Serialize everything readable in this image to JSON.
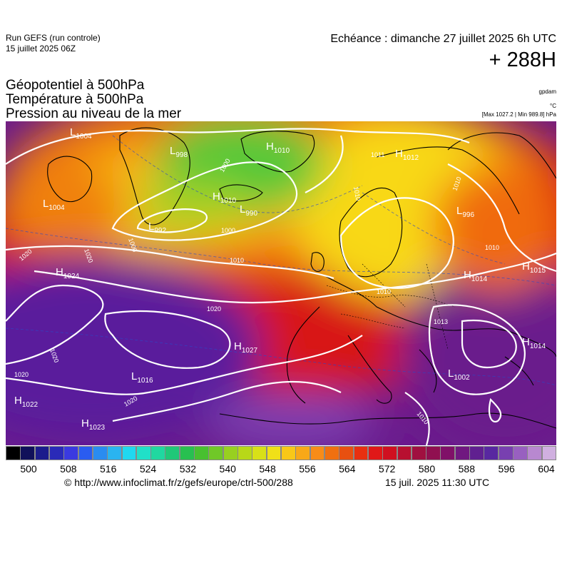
{
  "header": {
    "run_title": "Run GEFS (run controle)",
    "run_date": "15 juillet 2025 06Z",
    "valid_time": "Echéance : dimanche 27 juillet 2025 6h UTC",
    "lead_time": "+ 288H"
  },
  "layers": [
    "Géopotentiel à 500hPa",
    "Température à 500hPa",
    "Pression au niveau de la mer"
  ],
  "units": {
    "geopotential": "gpdam",
    "temperature": "°C",
    "pressure_range": "[Max 1027.2 | Min 989.8] hPa"
  },
  "colors": {
    "heat_red": "#e21a1a",
    "heat_orange": "#f07810",
    "heat_yellow": "#f8e01c",
    "green": "#52c83c",
    "purple": "#7a1a9c",
    "isobar": "#ffffff",
    "coastline": "#000000"
  },
  "pressure_centers": [
    {
      "type": "L",
      "value": "1004"
    },
    {
      "type": "L",
      "value": "998"
    },
    {
      "type": "H",
      "value": "1010"
    },
    {
      "type": "H",
      "value": "1012"
    },
    {
      "type": "L",
      "value": "1004"
    },
    {
      "type": "H",
      "value": "1010"
    },
    {
      "type": "L",
      "value": "990"
    },
    {
      "type": "L",
      "value": "992"
    },
    {
      "type": "L",
      "value": "996"
    },
    {
      "type": "H",
      "value": "1024"
    },
    {
      "type": "H",
      "value": "1014"
    },
    {
      "type": "H",
      "value": "1015"
    },
    {
      "type": "H",
      "value": "1027"
    },
    {
      "type": "H",
      "value": "1014"
    },
    {
      "type": "L",
      "value": "1016"
    },
    {
      "type": "L",
      "value": "1002"
    },
    {
      "type": "H",
      "value": "1022"
    },
    {
      "type": "H",
      "value": "1023"
    }
  ],
  "isobar_labels": [
    "1000",
    "1000",
    "1000",
    "1010",
    "1010",
    "1010",
    "1010",
    "1011",
    "1010",
    "1020",
    "1020",
    "1020",
    "1020",
    "1020",
    "1020",
    "1013",
    "1010"
  ],
  "colorbar": {
    "ticks": [
      "500",
      "508",
      "516",
      "524",
      "532",
      "540",
      "548",
      "556",
      "564",
      "572",
      "580",
      "588",
      "596",
      "604"
    ],
    "colors": [
      "#000000",
      "#10105a",
      "#1c1c8c",
      "#2a2ab8",
      "#3a3ae0",
      "#2a5cf0",
      "#2a8cf0",
      "#2ab4f0",
      "#20d8f0",
      "#20e0c8",
      "#20d8a0",
      "#20c878",
      "#28c050",
      "#48c030",
      "#70c828",
      "#98d020",
      "#b8d818",
      "#d8e018",
      "#f0e018",
      "#f8c818",
      "#f8a818",
      "#f88c18",
      "#f07010",
      "#e85010",
      "#e83010",
      "#e01818",
      "#d01020",
      "#b81030",
      "#a01040",
      "#901050",
      "#801068",
      "#701880",
      "#602090",
      "#5828a0",
      "#7840b0",
      "#9860c0",
      "#b888d0",
      "#d0b0e0"
    ]
  },
  "footer": {
    "credit": "© http://www.infoclimat.fr/z/gefs/europe/ctrl-500/288",
    "timestamp": "15 juil. 2025 11:30 UTC"
  }
}
